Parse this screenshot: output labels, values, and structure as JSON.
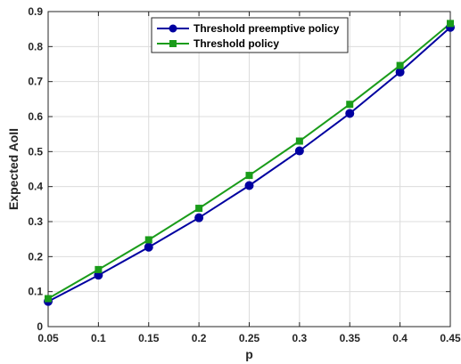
{
  "chart_data": {
    "type": "line",
    "title": "",
    "xlabel": "p",
    "ylabel": "Expected AoII",
    "x": [
      0.05,
      0.1,
      0.15,
      0.2,
      0.25,
      0.3,
      0.35,
      0.4,
      0.45
    ],
    "xlim": [
      0.05,
      0.45
    ],
    "ylim": [
      0,
      0.9
    ],
    "xticks": [
      "0.05",
      "0.1",
      "0.15",
      "0.2",
      "0.25",
      "0.3",
      "0.35",
      "0.4",
      "0.45"
    ],
    "yticks": [
      "0",
      "0.1",
      "0.2",
      "0.3",
      "0.4",
      "0.5",
      "0.6",
      "0.7",
      "0.8",
      "0.9"
    ],
    "grid": true,
    "legend_position": "top-center",
    "series": [
      {
        "name": "Threshold preemptive policy",
        "color": "#0000a0",
        "marker": "circle",
        "values": [
          0.072,
          0.147,
          0.227,
          0.311,
          0.403,
          0.502,
          0.609,
          0.727,
          0.855
        ]
      },
      {
        "name": "Threshold policy",
        "color": "#1a9c1a",
        "marker": "square",
        "values": [
          0.08,
          0.163,
          0.248,
          0.338,
          0.432,
          0.53,
          0.635,
          0.746,
          0.866
        ]
      }
    ]
  }
}
